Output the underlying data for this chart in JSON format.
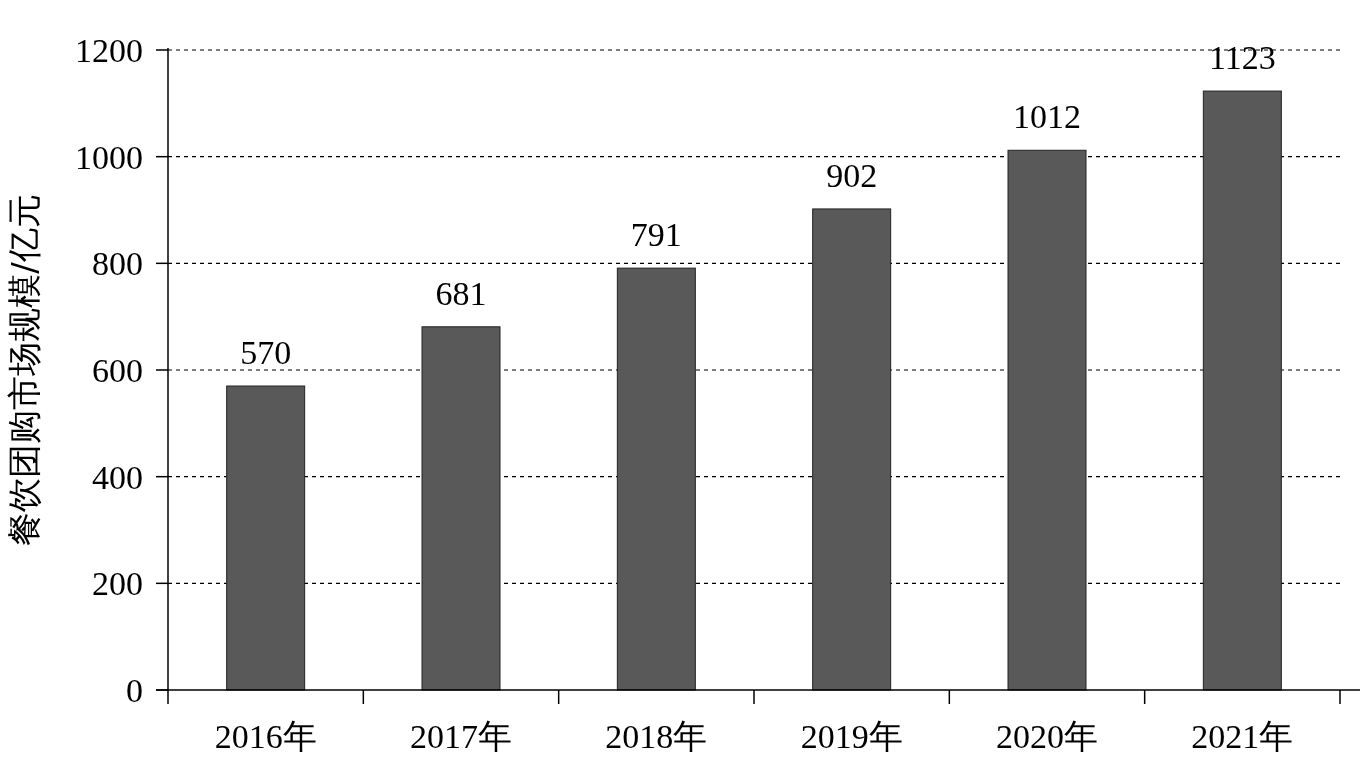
{
  "chart_data": {
    "type": "bar",
    "ylabel": "餐饮团购市场规模/亿元",
    "categories": [
      "2016年",
      "2017年",
      "2018年",
      "2019年",
      "2020年",
      "2021年"
    ],
    "values": [
      570,
      681,
      791,
      902,
      1012,
      1123
    ],
    "color": "#595959",
    "ylim": [
      0,
      1200
    ],
    "yticks": [
      0,
      200,
      400,
      600,
      800,
      1000,
      1200
    ],
    "grid": "y",
    "data_labels": true
  }
}
